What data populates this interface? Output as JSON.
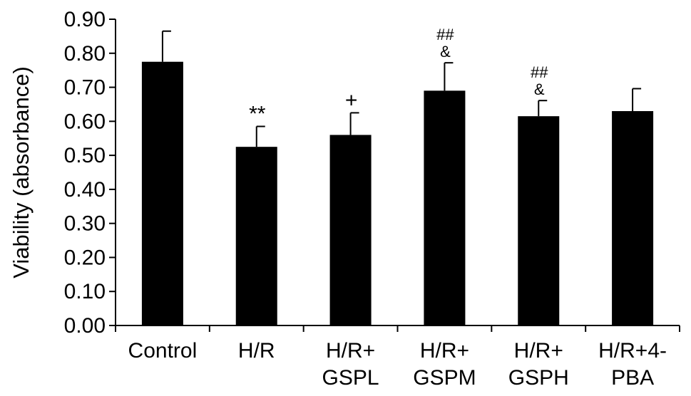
{
  "chart_data": {
    "type": "bar",
    "title": "",
    "xlabel": "",
    "ylabel": "Viability (absorbance)",
    "ylim": [
      0,
      0.9
    ],
    "yticks": [
      "0.00",
      "0.10",
      "0.20",
      "0.30",
      "0.40",
      "0.50",
      "0.60",
      "0.70",
      "0.80",
      "0.90"
    ],
    "grid": false,
    "bar_color": "#000000",
    "categories": [
      [
        "Control"
      ],
      [
        "H/R"
      ],
      [
        "H/R+",
        "GSPL"
      ],
      [
        "H/R+",
        "GSPM"
      ],
      [
        "H/R+",
        "GSPH"
      ],
      [
        "H/R+4-",
        "PBA"
      ]
    ],
    "values": [
      0.775,
      0.525,
      0.56,
      0.69,
      0.615,
      0.63
    ],
    "errors": [
      0.09,
      0.06,
      0.065,
      0.082,
      0.046,
      0.066
    ],
    "annotations": [
      [],
      [
        "**"
      ],
      [
        "+"
      ],
      [
        "##",
        "&"
      ],
      [
        "##",
        "&"
      ],
      []
    ]
  }
}
